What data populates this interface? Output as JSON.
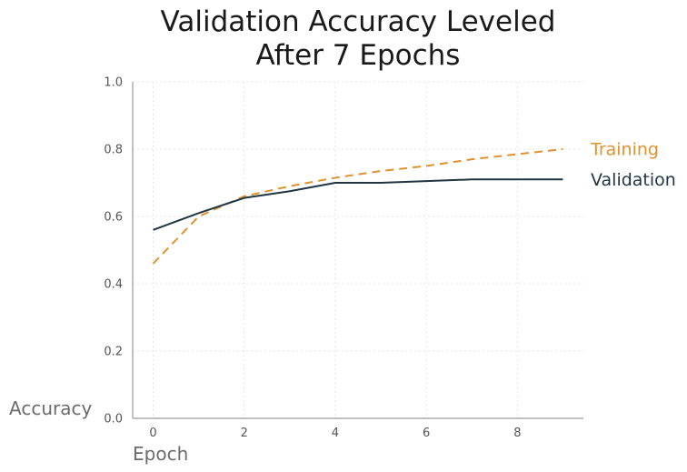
{
  "chart_data": {
    "type": "line",
    "title_lines": [
      "Validation Accuracy Leveled",
      "After 7 Epochs"
    ],
    "xlabel": "Epoch",
    "ylabel": "Accuracy",
    "xlim": [
      -0.45,
      9.45
    ],
    "ylim": [
      0.0,
      1.0
    ],
    "xticks": [
      0,
      2,
      4,
      6,
      8
    ],
    "xtick_labels": [
      "0",
      "2",
      "4",
      "6",
      "8"
    ],
    "yticks": [
      0.0,
      0.2,
      0.4,
      0.6,
      0.8,
      1.0
    ],
    "ytick_labels": [
      "0.0",
      "0.2",
      "0.4",
      "0.6",
      "0.8",
      "1.0"
    ],
    "grid": true,
    "legend_placement": "direct labels at right end of lines",
    "x": [
      0,
      1,
      2,
      3,
      4,
      5,
      6,
      7,
      8,
      9
    ],
    "series": [
      {
        "name": "Training",
        "color": "#e0922f",
        "style": "dashed",
        "values": [
          0.46,
          0.6,
          0.66,
          0.69,
          0.715,
          0.735,
          0.75,
          0.77,
          0.785,
          0.8
        ]
      },
      {
        "name": "Validation",
        "color": "#1f3642",
        "style": "solid",
        "values": [
          0.56,
          0.61,
          0.655,
          0.675,
          0.7,
          0.7,
          0.705,
          0.71,
          0.71,
          0.71
        ]
      }
    ]
  }
}
